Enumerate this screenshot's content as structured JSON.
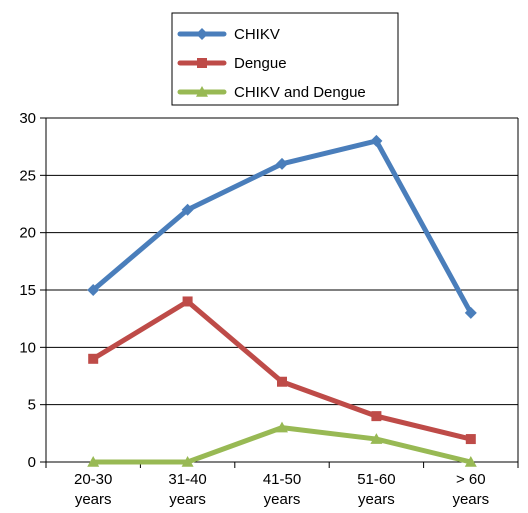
{
  "chart_data": {
    "type": "line",
    "title": "",
    "xlabel": "",
    "ylabel": "",
    "categories": [
      [
        "20-30",
        "years"
      ],
      [
        "31-40",
        "years"
      ],
      [
        "41-50",
        "years"
      ],
      [
        "51-60",
        "years"
      ],
      [
        "> 60",
        "years"
      ]
    ],
    "ylim": [
      0,
      30
    ],
    "yticks": [
      0,
      5,
      10,
      15,
      20,
      25,
      30
    ],
    "grid": "horizontal",
    "legend": "top",
    "series": [
      {
        "name": "CHIKV",
        "values": [
          15,
          22,
          26,
          28,
          13
        ],
        "color": "#4a7ebb",
        "marker": "diamond"
      },
      {
        "name": "Dengue",
        "values": [
          9,
          14,
          7,
          4,
          2
        ],
        "color": "#be4b48",
        "marker": "square"
      },
      {
        "name": "CHIKV and Dengue",
        "values": [
          0,
          0,
          3,
          2,
          0
        ],
        "color": "#98b954",
        "marker": "triangle"
      }
    ]
  }
}
